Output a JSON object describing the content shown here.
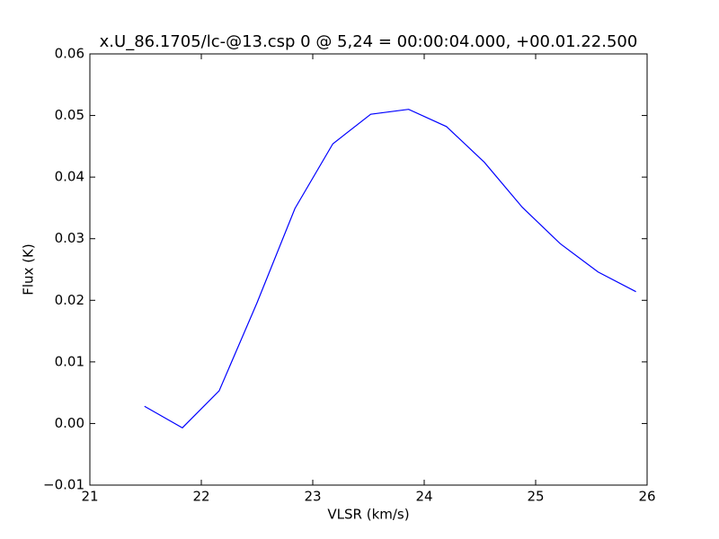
{
  "chart_data": {
    "type": "line",
    "title": "x.U_86.1705/lc-@13.csp 0 @ 5,24 = 00:00:04.000, +00.01.22.500",
    "x_label": "VLSR (km/s)",
    "y_label": "Flux (K)",
    "x": [
      21.49,
      21.83,
      22.16,
      22.5,
      22.84,
      23.18,
      23.52,
      23.86,
      24.2,
      24.54,
      24.88,
      25.22,
      25.56,
      25.9
    ],
    "series": [
      {
        "color": "#0000ff",
        "values": [
          0.0028,
          -0.0007,
          0.0053,
          0.0196,
          0.0349,
          0.0454,
          0.0502,
          0.051,
          0.0482,
          0.0424,
          0.0351,
          0.0292,
          0.0246,
          0.0214
        ]
      }
    ],
    "xlim": [
      21,
      26
    ],
    "xticks": [
      21,
      22,
      23,
      24,
      25,
      26
    ],
    "ylim": [
      -0.01,
      0.06
    ],
    "yticks": [
      {
        "value": -0.01,
        "label": "−0.01"
      },
      {
        "value": 0,
        "label": "0.00"
      },
      0.01,
      0.02,
      0.03,
      0.04,
      0.05,
      0.06
    ]
  }
}
